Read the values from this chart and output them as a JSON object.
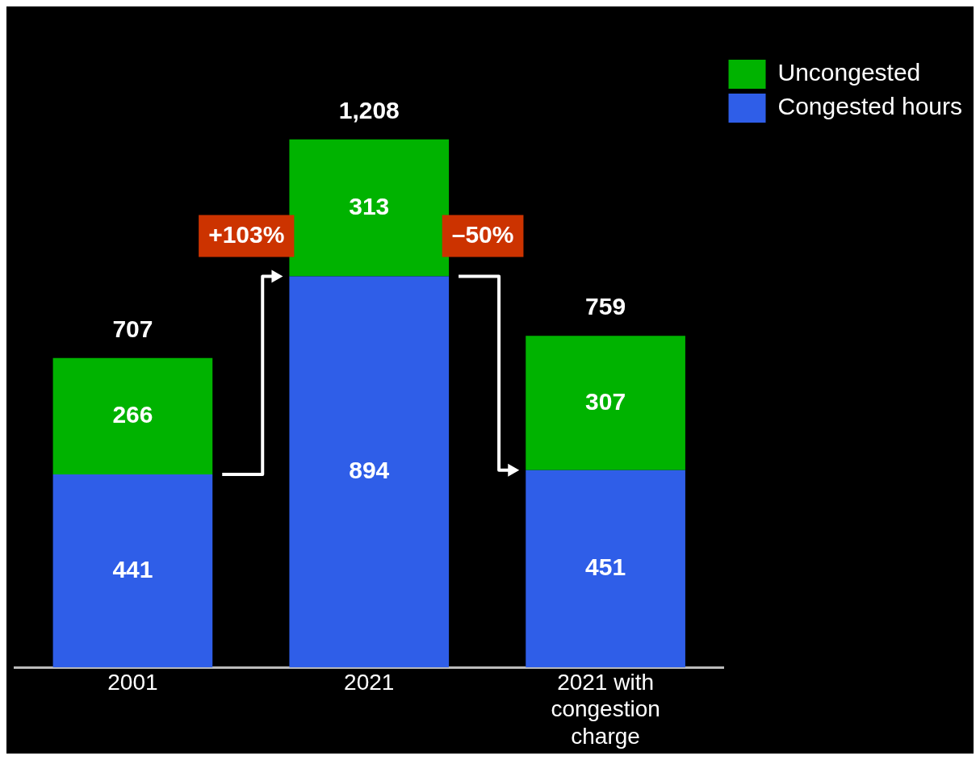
{
  "chart_data": {
    "type": "bar",
    "stacked": true,
    "categories": [
      "2001",
      "2021",
      "2021 with congestion charge"
    ],
    "series": [
      {
        "name": "Congested hours",
        "color": "#2f5ee8",
        "values": [
          441,
          894,
          451
        ]
      },
      {
        "name": "Uncongested",
        "color": "#00b300",
        "values": [
          266,
          313,
          307
        ]
      }
    ],
    "totals": [
      "707",
      "1,208",
      "759"
    ],
    "data_labels": true,
    "annotations": [
      "+103%",
      "–50%"
    ],
    "legend": "top right",
    "grid": false,
    "tick_labels": "x"
  }
}
